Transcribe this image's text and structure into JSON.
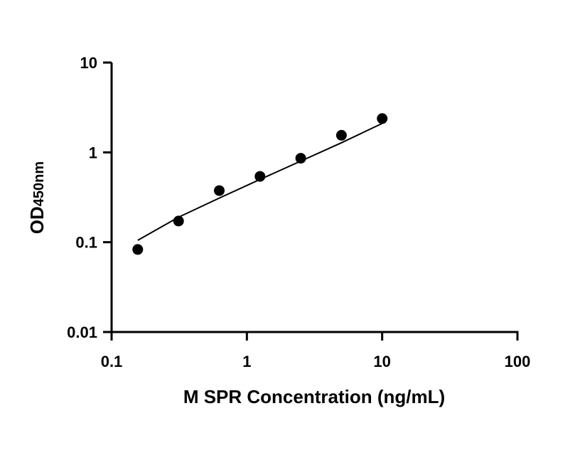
{
  "chart_data": {
    "type": "scatter",
    "title": "",
    "xlabel": "M SPR Concentration (ng/mL)",
    "ylabel": "OD",
    "ylabel_sub": "450nm",
    "x_scale": "log",
    "y_scale": "log",
    "xlim": [
      0.1,
      100
    ],
    "ylim": [
      0.01,
      10
    ],
    "x_ticks": [
      0.1,
      1,
      10,
      100
    ],
    "x_tick_labels": [
      "0.1",
      "1",
      "10",
      "100"
    ],
    "y_ticks": [
      0.01,
      0.1,
      1,
      10
    ],
    "y_tick_labels": [
      "0.01",
      "0.1",
      "1",
      "10"
    ],
    "grid": false,
    "legend": "none",
    "series": [
      {
        "marker": "filled-circle",
        "color": "#000000",
        "x": [
          0.156,
          0.3125,
          0.625,
          1.25,
          2.5,
          5,
          10
        ],
        "y": [
          0.083,
          0.172,
          0.375,
          0.54,
          0.86,
          1.55,
          2.38
        ]
      }
    ],
    "fit_line": {
      "color": "#000000",
      "x": [
        0.156,
        0.3125,
        0.625,
        1.25,
        2.5,
        5,
        10
      ],
      "y": [
        0.105,
        0.19,
        0.31,
        0.5,
        0.8,
        1.28,
        2.1
      ]
    }
  }
}
